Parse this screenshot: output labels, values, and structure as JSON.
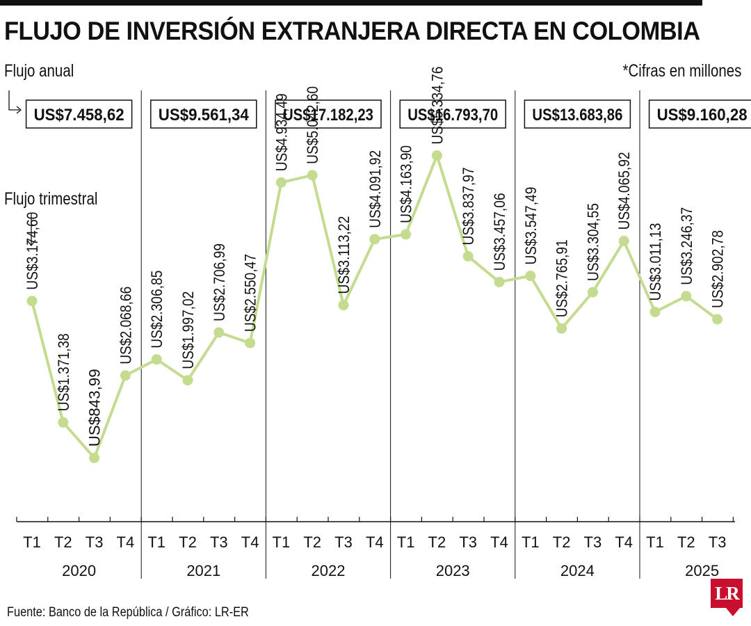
{
  "header": {
    "title": "FLUJO DE INVERSIÓN EXTRANJERA DIRECTA EN COLOMBIA",
    "annual_label": "Flujo anual",
    "quarterly_label": "Flujo trimestral",
    "units_note": "*Cifras en millones"
  },
  "footer": {
    "source": "Fuente: Banco de la República / Gráfico: LR-ER",
    "logo": "LR"
  },
  "chart_data": {
    "type": "line",
    "title": "FLUJO DE INVERSIÓN EXTRANJERA DIRECTA EN COLOMBIA",
    "units": "*Cifras en millones",
    "line_color": "#c5db8f",
    "years": [
      {
        "year": "2020",
        "annual": "US$7.458,62",
        "quarters": [
          "T1",
          "T2",
          "T3",
          "T4"
        ]
      },
      {
        "year": "2021",
        "annual": "US$9.561,34",
        "quarters": [
          "T1",
          "T2",
          "T3",
          "T4"
        ]
      },
      {
        "year": "2022",
        "annual": "US$17.182,23",
        "quarters": [
          "T1",
          "T2",
          "T3",
          "T4"
        ]
      },
      {
        "year": "2023",
        "annual": "US$16.793,70",
        "quarters": [
          "T1",
          "T2",
          "T3",
          "T4"
        ]
      },
      {
        "year": "2024",
        "annual": "US$13.683,86",
        "quarters": [
          "T1",
          "T2",
          "T3",
          "T4"
        ]
      },
      {
        "year": "2025",
        "annual": "US$9.160,28",
        "quarters": [
          "T1",
          "T2",
          "T3"
        ]
      }
    ],
    "series": [
      {
        "values": [
          3174.6,
          1371.38,
          843.99,
          2068.66,
          2306.85,
          1997.02,
          2706.99,
          2550.47,
          4934.49,
          5042.6,
          3113.22,
          4091.92,
          4163.9,
          5334.76,
          3837.97,
          3457.06,
          3547.49,
          2765.91,
          3304.55,
          4065.92,
          3011.13,
          3246.37,
          2902.78
        ],
        "labels": [
          "US$3.174,60",
          "US$1.371,38",
          "US$843,99",
          "US$2.068,66",
          "US$2.306,85",
          "US$1.997,02",
          "US$2.706,99",
          "US$2.550,47",
          "US$4.934,49",
          "US$5.042,60",
          "US$3.113,22",
          "US$4.091,92",
          "US$4.163,90",
          "US$5.334,76",
          "US$3.837,97",
          "US$3.457,06",
          "US$3.547,49",
          "US$2.765,91",
          "US$3.304,55",
          "US$4.065,92",
          "US$3.011,13",
          "US$3.246,37",
          "US$2.902,78"
        ]
      }
    ]
  }
}
